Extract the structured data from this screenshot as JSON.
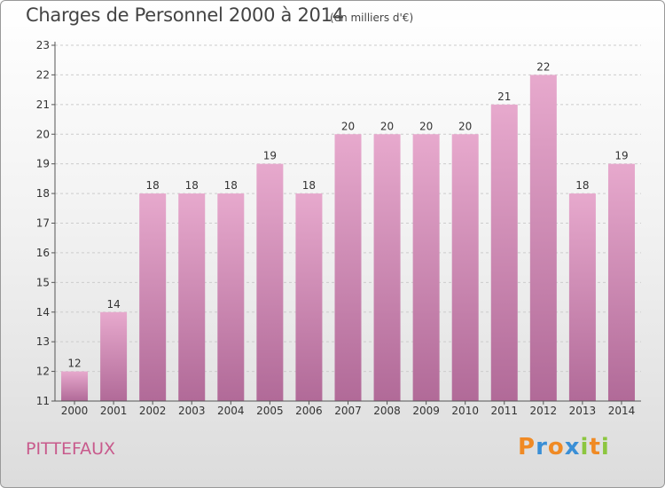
{
  "title": "Charges de Personnel 2000 à 2014",
  "subtitle": "(en milliers d'€)",
  "commune": "PITTEFAUX",
  "logo": {
    "letters": [
      "P",
      "r",
      "o",
      "x",
      "i",
      "t",
      "i"
    ],
    "colors": [
      "#f08a24",
      "#3a8fd6",
      "#f08a24",
      "#3a8fd6",
      "#8cc63f",
      "#f08a24",
      "#8cc63f"
    ]
  },
  "chart_data": {
    "type": "bar",
    "categories": [
      "2000",
      "2001",
      "2002",
      "2003",
      "2004",
      "2005",
      "2006",
      "2007",
      "2008",
      "2009",
      "2010",
      "2011",
      "2012",
      "2013",
      "2014"
    ],
    "values": [
      12,
      14,
      18,
      18,
      18,
      19,
      18,
      20,
      20,
      20,
      20,
      21,
      22,
      18,
      19
    ],
    "value_labels": [
      "12",
      "14",
      "18",
      "18",
      "18",
      "19",
      "18",
      "20",
      "20",
      "20",
      "20",
      "21",
      "22",
      "18",
      "19"
    ],
    "ylim": [
      11,
      23
    ],
    "yticks": [
      "11",
      "12",
      "13",
      "14",
      "15",
      "16",
      "17",
      "18",
      "19",
      "20",
      "21",
      "22",
      "23"
    ],
    "grid": true,
    "bar_color_top": "#e7a9cd",
    "bar_color_bottom": "#b16a98"
  }
}
